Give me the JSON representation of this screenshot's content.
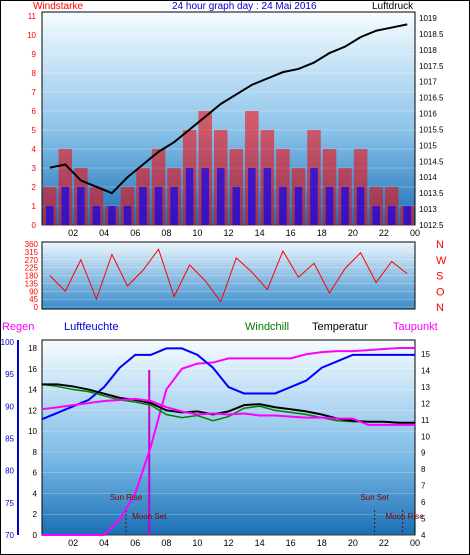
{
  "header": {
    "left_label": "Windstarke",
    "title": "24 hour graph day : 24 Mai 2016",
    "right_label": "Luftdruck"
  },
  "colors": {
    "wind": "#ff0000",
    "gust_bars": "#0000ff",
    "pressure": "#000000",
    "winddir": "#ff0000",
    "humidity": "#0000ff",
    "windchill": "#008000",
    "temperature": "#000000",
    "dewpoint": "#ff00ff",
    "rain": "#ff00ff",
    "plot_top": "#f4fbff",
    "plot_bottom": "#1c73b8"
  },
  "x_ticks": [
    "02",
    "04",
    "06",
    "08",
    "10",
    "12",
    "14",
    "16",
    "18",
    "20",
    "22",
    "00"
  ],
  "bottom_headers": {
    "rain": "Regen",
    "humidity": "Luftfeuchte",
    "windchill": "Windchill",
    "temperature": "Temperatur",
    "dewpoint": "Taupunkt"
  },
  "annotations": {
    "sunrise": "Sun Rise",
    "moonset": "Moon Set",
    "sunset": "Sun Set",
    "moonrise": "Moon Rise"
  },
  "compass_labels": [
    "N",
    "W",
    "S",
    "O",
    "N"
  ],
  "chart_data": [
    {
      "type": "line",
      "title": "24 hour graph day : 24 Mai 2016",
      "xlabel": "",
      "ylabel_left": "Windstarke",
      "ylabel_right": "Luftdruck",
      "left_axis": {
        "min": 0,
        "max": 11,
        "ticks": [
          0,
          1,
          2,
          3,
          4,
          5,
          6,
          7,
          8,
          9,
          10,
          11
        ]
      },
      "right_axis": {
        "min": 1012.5,
        "max": 1019.0,
        "ticks": [
          1012.5,
          1013,
          1013.5,
          1014,
          1014.5,
          1015,
          1015.5,
          1016,
          1016.5,
          1017,
          1017.5,
          1018,
          1018.5,
          1019
        ]
      },
      "x_hours": [
        1,
        2,
        3,
        4,
        5,
        6,
        7,
        8,
        9,
        10,
        11,
        12,
        13,
        14,
        15,
        16,
        17,
        18,
        19,
        20,
        21,
        22,
        23,
        24
      ],
      "series": [
        {
          "name": "Luftdruck",
          "axis": "right",
          "values": [
            1014.3,
            1014.4,
            1013.9,
            1013.7,
            1013.5,
            1014.0,
            1014.4,
            1014.8,
            1015.1,
            1015.5,
            1015.9,
            1016.3,
            1016.6,
            1016.9,
            1017.1,
            1017.3,
            1017.4,
            1017.6,
            1017.9,
            1018.1,
            1018.4,
            1018.6,
            1018.7,
            1018.8
          ]
        },
        {
          "name": "Windstarke",
          "axis": "left",
          "values": [
            2,
            4,
            3,
            2,
            1,
            2,
            3,
            4,
            3,
            5,
            6,
            5,
            4,
            6,
            5,
            4,
            3,
            5,
            4,
            3,
            4,
            2,
            2,
            1
          ]
        }
      ]
    },
    {
      "type": "line",
      "ylabel_right": "N W S O N",
      "y_axis": {
        "min": 0,
        "max": 360,
        "ticks": [
          0,
          45,
          90,
          135,
          180,
          225,
          270,
          315,
          360
        ]
      },
      "series": [
        {
          "name": "winddir",
          "values": [
            180,
            90,
            270,
            45,
            300,
            120,
            210,
            330,
            60,
            240,
            150,
            30,
            280,
            200,
            100,
            320,
            170,
            250,
            80,
            220,
            310,
            140,
            260,
            190
          ]
        }
      ]
    },
    {
      "type": "line",
      "y_axes": {
        "rain": {
          "min": 70,
          "max": 100,
          "ticks": [
            70,
            75,
            80,
            85,
            90,
            95,
            100
          ]
        },
        "temperature": {
          "min": 0,
          "max": 18,
          "ticks": [
            0,
            2,
            4,
            6,
            8,
            10,
            12,
            14,
            16,
            18
          ]
        },
        "right": {
          "min": 4,
          "max": 15,
          "ticks": [
            4,
            5,
            6,
            7,
            8,
            9,
            10,
            11,
            12,
            13,
            14,
            15
          ]
        }
      },
      "x_hours": [
        0,
        1,
        2,
        3,
        4,
        5,
        6,
        7,
        8,
        9,
        10,
        11,
        12,
        13,
        14,
        15,
        16,
        17,
        18,
        19,
        20,
        21,
        22,
        23,
        24
      ],
      "series": [
        {
          "name": "Luftfeuchte",
          "values": [
            88,
            89,
            90,
            91,
            93,
            96,
            98,
            98,
            99,
            99,
            98,
            96,
            93,
            92,
            92,
            92,
            93,
            94,
            96,
            97,
            98,
            98,
            98,
            98,
            98
          ]
        },
        {
          "name": "Temperatur",
          "values": [
            14.5,
            14.5,
            14.3,
            14.0,
            13.6,
            13.2,
            13.0,
            12.7,
            12.0,
            11.8,
            11.9,
            11.6,
            11.9,
            12.5,
            12.6,
            12.3,
            12.1,
            11.9,
            11.6,
            11.2,
            11.0,
            10.9,
            10.9,
            10.8,
            10.8
          ]
        },
        {
          "name": "Windchill",
          "values": [
            14.5,
            14.3,
            14.0,
            13.8,
            13.4,
            13.0,
            12.8,
            12.5,
            11.6,
            11.3,
            11.5,
            11.0,
            11.4,
            12.2,
            12.4,
            12.0,
            11.8,
            11.6,
            11.3,
            11.0,
            10.9,
            10.9,
            10.9,
            10.8,
            10.8
          ]
        },
        {
          "name": "Taupunkt",
          "values": [
            12.1,
            12.3,
            12.5,
            12.7,
            12.9,
            13.0,
            13.1,
            12.9,
            12.3,
            11.9,
            11.6,
            11.7,
            11.6,
            11.7,
            11.5,
            11.5,
            11.4,
            11.3,
            11.3,
            11.2,
            11.2,
            10.6,
            10.6,
            10.6,
            10.6
          ]
        },
        {
          "name": "Regen",
          "values": [
            0,
            0,
            0,
            0,
            0,
            1.5,
            4,
            8.5,
            14,
            16,
            16.5,
            16.6,
            17,
            17,
            17,
            17,
            17,
            17.4,
            17.6,
            17.7,
            17.7,
            17.8,
            17.9,
            18,
            18
          ]
        }
      ],
      "annotations": [
        {
          "label": "Sun Rise",
          "hour": 5.4
        },
        {
          "label": "Moon Set",
          "hour": 6.9
        },
        {
          "label": "Sun Set",
          "hour": 21.4
        },
        {
          "label": "Moon Rise",
          "hour": 23.2
        }
      ]
    }
  ]
}
